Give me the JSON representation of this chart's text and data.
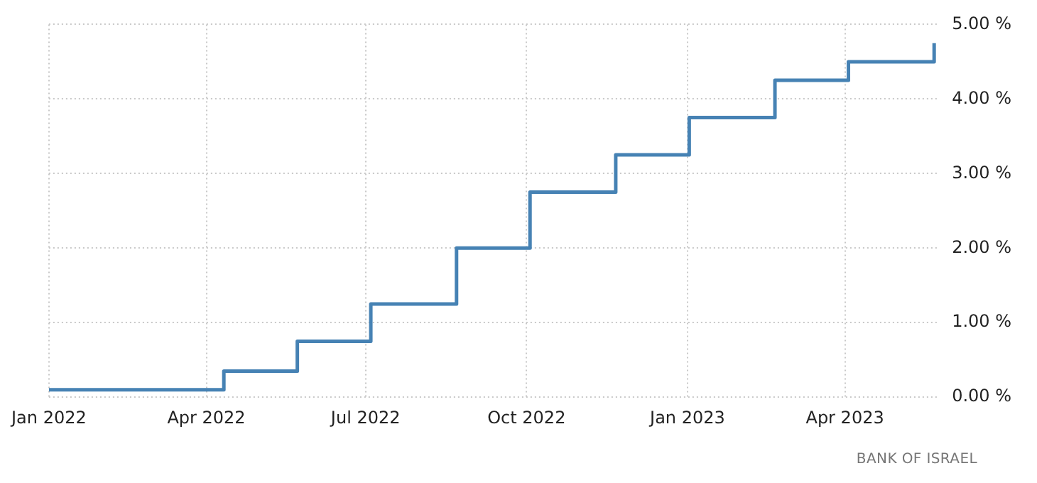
{
  "chart_data": {
    "type": "step",
    "x": [
      "2022-01-01",
      "2022-04-11",
      "2022-05-23",
      "2022-07-04",
      "2022-08-22",
      "2022-10-03",
      "2022-11-21",
      "2023-01-02",
      "2023-02-20",
      "2023-04-03",
      "2023-05-22"
    ],
    "series": [
      {
        "color": "#4682b4",
        "values": [
          0.1,
          0.35,
          0.75,
          1.25,
          2.0,
          2.75,
          3.25,
          3.75,
          4.25,
          4.5,
          4.75
        ]
      }
    ],
    "xlim": [
      "2022-01-01",
      "2023-05-24"
    ],
    "xticks": [
      {
        "value": "2022-01-01",
        "label": "Jan 2022"
      },
      {
        "value": "2022-04-01",
        "label": "Apr 2022"
      },
      {
        "value": "2022-07-01",
        "label": "Jul 2022"
      },
      {
        "value": "2022-10-01",
        "label": "Oct 2022"
      },
      {
        "value": "2023-01-01",
        "label": "Jan 2023"
      },
      {
        "value": "2023-04-01",
        "label": "Apr 2023"
      }
    ],
    "ylim": [
      0,
      5
    ],
    "yticks": [
      {
        "value": 0,
        "label": "0.00 %"
      },
      {
        "value": 1,
        "label": "1.00 %"
      },
      {
        "value": 2,
        "label": "2.00 %"
      },
      {
        "value": 3,
        "label": "3.00 %"
      },
      {
        "value": 4,
        "label": "4.00 %"
      },
      {
        "value": 5,
        "label": "5.00 %"
      }
    ],
    "grid": true,
    "legend": false,
    "marker": "none",
    "line_style": "solid",
    "annotations": [
      "BANK OF ISRAEL"
    ]
  }
}
